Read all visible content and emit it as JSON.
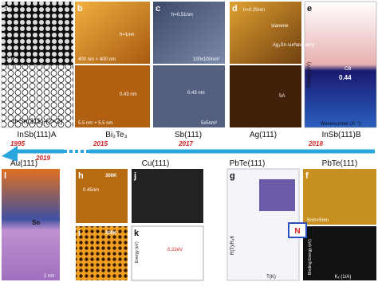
{
  "panel_letters": [
    "a",
    "b",
    "c",
    "d",
    "e",
    "l",
    "h",
    "i",
    "j",
    "k",
    "g",
    "f"
  ],
  "top_substrates": [
    "InSb(111)A",
    "Bi₂Te₃",
    "Sb(111)",
    "Ag(111)",
    "InSb(111)B"
  ],
  "bottom_substrates": [
    "Au(111)",
    "Cu(111)",
    "PbTe(111)",
    "PbTe(111)"
  ],
  "years": [
    "1995",
    "2015",
    "2017",
    "2018",
    "2019"
  ],
  "panel_a": {
    "scale": "1nm",
    "caption": "α-Sn(111)-(2×2)"
  },
  "panel_b": {
    "height": "h=1nm",
    "size": "400 nm × 400 nm",
    "spacing": "0.43 nm",
    "size2": "5.5 nm × 5.5 nm"
  },
  "panel_c": {
    "height": "h=0.51nm",
    "size": "100x100nm²",
    "spacing": "0.43 nm",
    "size2": "5x5nm²"
  },
  "panel_d": {
    "height": "h=0.25nm",
    "stanene": "stanene",
    "alloy": "Ag₂Sn surface alloy",
    "period": "5A"
  },
  "panel_e": {
    "ylabel": "Energy (eV)",
    "xlabel": "Wavenumber (Å⁻¹)",
    "gap": "0.44",
    "band": "CB"
  },
  "panel_l": {
    "element": "Sn",
    "scale": "1 nm"
  },
  "panel_h": {
    "temp": "300K",
    "spacing": "0.45nm"
  },
  "panel_i": {
    "temp": "200K"
  },
  "panel_k": {
    "gap": "0.22eV",
    "ylabel": "Energy (eV)"
  },
  "panel_g": {
    "ylabel": "R(T)/R₄K",
    "xlabel": "T(K)"
  },
  "panel_f": {
    "size": "5nm×5nm",
    "ylabel": "Binding Energy (eV)",
    "xlabel": "Kₓ (1/A)"
  }
}
